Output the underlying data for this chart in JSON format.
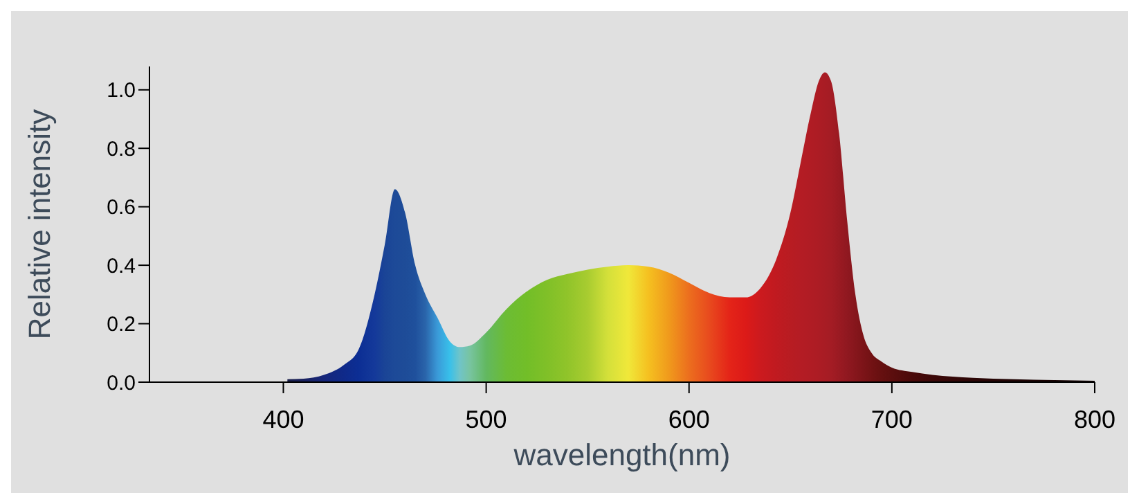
{
  "chart_data": {
    "type": "area",
    "xlabel": "wavelength(nm)",
    "ylabel": "Relative intensity",
    "xlim": [
      334,
      800
    ],
    "xticks": [
      400,
      500,
      600,
      700,
      800
    ],
    "ylim": [
      0,
      1.08
    ],
    "yticks": [
      {
        "value": 0,
        "label": "0.0"
      },
      {
        "value": 0.2,
        "label": "0.2"
      },
      {
        "value": 0.4,
        "label": "0.4"
      },
      {
        "value": 0.6,
        "label": "0.6"
      },
      {
        "value": 0.8,
        "label": "0.8"
      },
      {
        "value": 1,
        "label": "1.0"
      }
    ],
    "grid": false,
    "legend": false,
    "x": [
      402,
      410,
      420,
      430,
      437,
      445,
      450,
      455,
      460,
      465,
      470,
      476,
      482,
      487,
      492,
      500,
      510,
      520,
      530,
      540,
      550,
      560,
      570,
      580,
      590,
      600,
      610,
      620,
      628,
      635,
      643,
      650,
      655,
      660,
      664,
      667,
      670,
      674,
      678,
      682,
      686,
      690,
      695,
      700,
      710,
      720,
      740,
      760,
      780,
      800
    ],
    "series": [
      {
        "values": [
          0.01,
          0.012,
          0.025,
          0.06,
          0.11,
          0.3,
          0.47,
          0.66,
          0.58,
          0.4,
          0.3,
          0.22,
          0.14,
          0.12,
          0.125,
          0.17,
          0.25,
          0.31,
          0.35,
          0.37,
          0.385,
          0.395,
          0.4,
          0.395,
          0.375,
          0.34,
          0.305,
          0.29,
          0.29,
          0.32,
          0.42,
          0.58,
          0.75,
          0.92,
          1.03,
          1.06,
          1.03,
          0.85,
          0.55,
          0.3,
          0.16,
          0.1,
          0.07,
          0.05,
          0.035,
          0.025,
          0.015,
          0.01,
          0.007,
          0.005
        ],
        "colors": [
          "#1a1f4a",
          "#1a2260",
          "#16267a",
          "#0f2a8a",
          "#0c2e94",
          "#14399a",
          "#1a4496",
          "#1d4a98",
          "#1e4c98",
          "#1f509c",
          "#2a64aa",
          "#3a9ad8",
          "#38c0ea",
          "#70c4c8",
          "#78c4a0",
          "#62b860",
          "#6cbc34",
          "#72be28",
          "#80c028",
          "#90c42a",
          "#a8cc30",
          "#d4e03a",
          "#f0e83a",
          "#f5c020",
          "#f09a1c",
          "#ec6e1e",
          "#e84a1e",
          "#e42418",
          "#dc1a18",
          "#cc1a1e",
          "#c01a20",
          "#b81c22",
          "#b41c24",
          "#b01c24",
          "#ac1c24",
          "#a81c24",
          "#a41c24",
          "#9a1a22",
          "#901820",
          "#86161c",
          "#7c1418",
          "#721214",
          "#661010",
          "#5c0e0e",
          "#4a0a0a",
          "#3c0808",
          "#2c0606",
          "#200404",
          "#180303",
          "#100202"
        ]
      }
    ]
  }
}
